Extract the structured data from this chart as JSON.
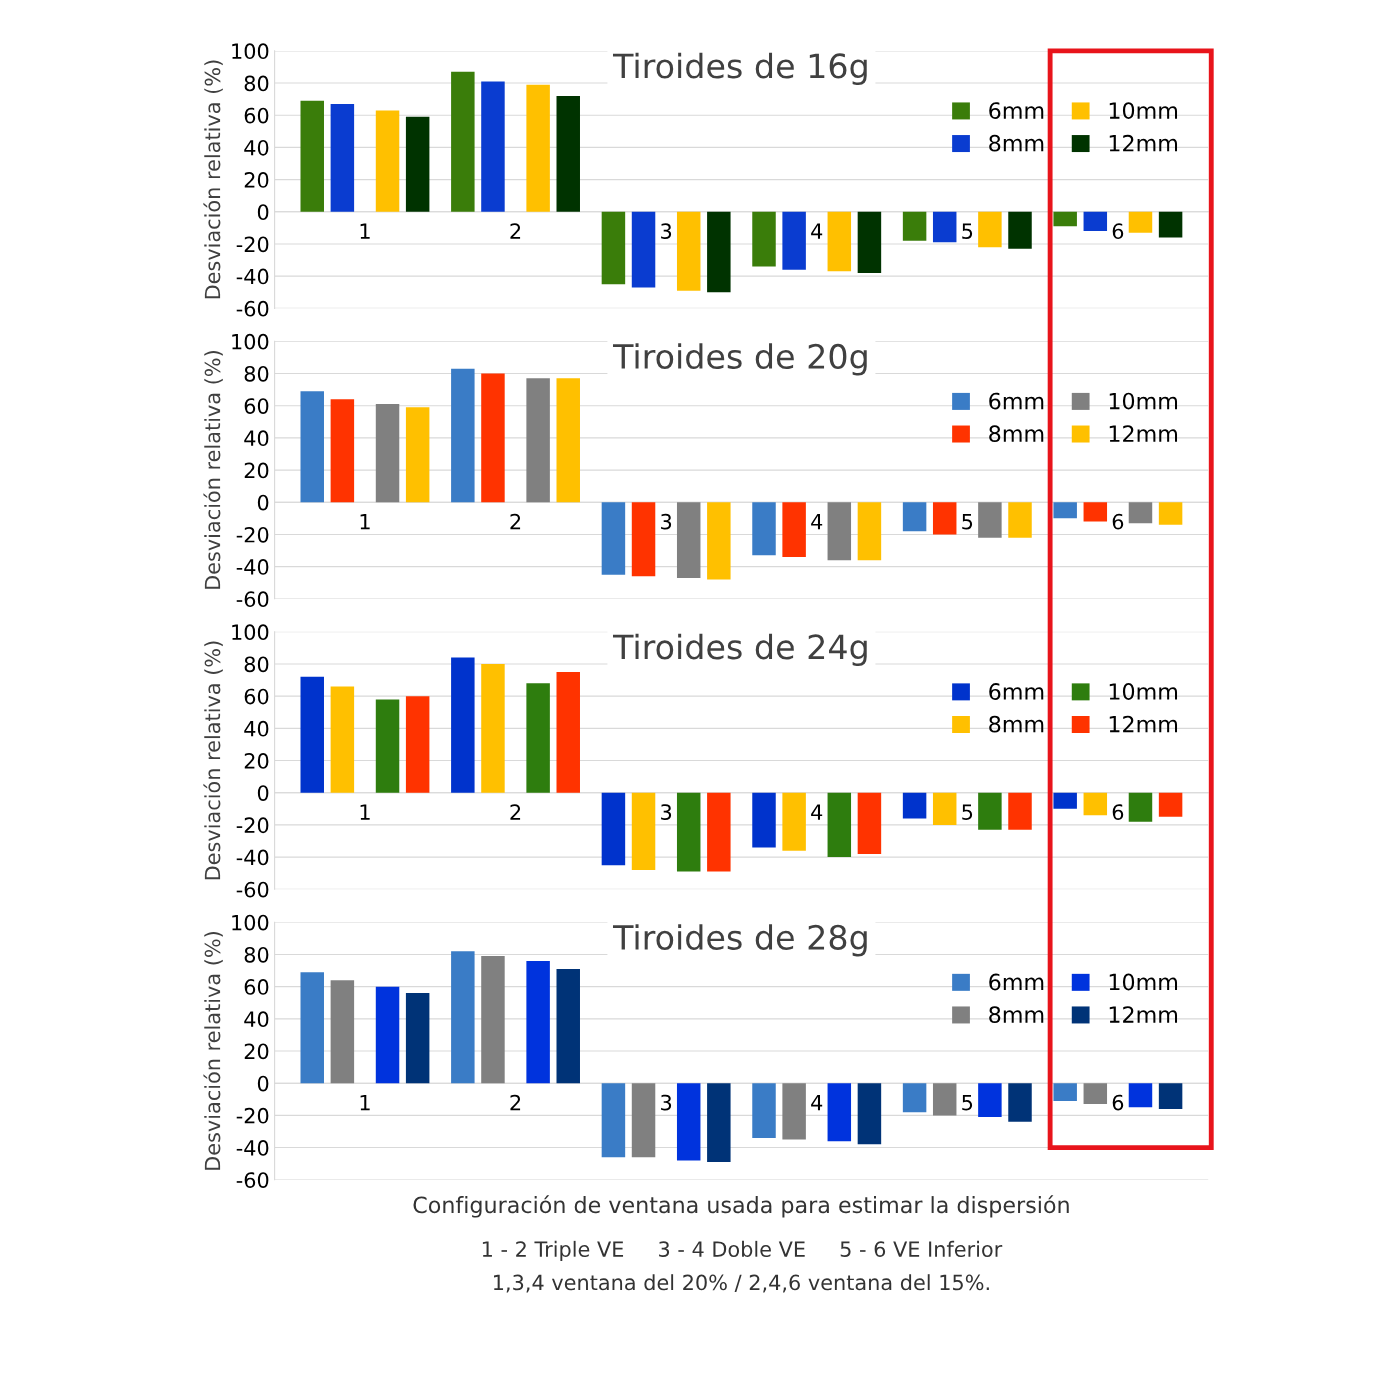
{
  "chart_data": [
    {
      "type": "bar",
      "title": "Tiroides de 16g",
      "ylabel": "Desviación relativa (%)",
      "categories": [
        "1",
        "2",
        "3",
        "4",
        "5",
        "6"
      ],
      "ylim": [
        -60,
        100
      ],
      "yticks": [
        -60,
        -40,
        -20,
        0,
        20,
        40,
        60,
        80,
        100
      ],
      "grid": "y",
      "legend": "top right",
      "series": [
        {
          "name": "6mm",
          "color": "#3a7d0a",
          "values": [
            69,
            87,
            -45,
            -34,
            -18,
            -9
          ]
        },
        {
          "name": "8mm",
          "color": "#0a3cd0",
          "values": [
            67,
            81,
            -47,
            -36,
            -19,
            -12
          ]
        },
        {
          "name": "10mm",
          "color": "#ffc000",
          "values": [
            63,
            79,
            -49,
            -37,
            -22,
            -13
          ]
        },
        {
          "name": "12mm",
          "color": "#003300",
          "values": [
            59,
            72,
            -50,
            -38,
            -23,
            -16
          ]
        }
      ]
    },
    {
      "type": "bar",
      "title": "Tiroides de 20g",
      "ylabel": "Desviación relativa (%)",
      "categories": [
        "1",
        "2",
        "3",
        "4",
        "5",
        "6"
      ],
      "ylim": [
        -60,
        100
      ],
      "yticks": [
        -60,
        -40,
        -20,
        0,
        20,
        40,
        60,
        80,
        100
      ],
      "grid": "y",
      "legend": "top right",
      "series": [
        {
          "name": "6mm",
          "color": "#3a7cc6",
          "values": [
            69,
            83,
            -45,
            -33,
            -18,
            -10
          ]
        },
        {
          "name": "8mm",
          "color": "#ff3300",
          "values": [
            64,
            80,
            -46,
            -34,
            -20,
            -12
          ]
        },
        {
          "name": "10mm",
          "color": "#808080",
          "values": [
            61,
            77,
            -47,
            -36,
            -22,
            -13
          ]
        },
        {
          "name": "12mm",
          "color": "#ffc000",
          "values": [
            59,
            77,
            -48,
            -36,
            -22,
            -14
          ]
        }
      ]
    },
    {
      "type": "bar",
      "title": "Tiroides de 24g",
      "ylabel": "Desviación relativa (%)",
      "categories": [
        "1",
        "2",
        "3",
        "4",
        "5",
        "6"
      ],
      "ylim": [
        -60,
        100
      ],
      "yticks": [
        -60,
        -40,
        -20,
        0,
        20,
        40,
        60,
        80,
        100
      ],
      "grid": "y",
      "legend": "top right",
      "series": [
        {
          "name": "6mm",
          "color": "#0033cc",
          "values": [
            72,
            84,
            -45,
            -34,
            -16,
            -10
          ]
        },
        {
          "name": "8mm",
          "color": "#ffc000",
          "values": [
            66,
            80,
            -48,
            -36,
            -20,
            -14
          ]
        },
        {
          "name": "10mm",
          "color": "#2e7d0e",
          "values": [
            58,
            68,
            -49,
            -40,
            -23,
            -18
          ]
        },
        {
          "name": "12mm",
          "color": "#ff3300",
          "values": [
            60,
            75,
            -49,
            -38,
            -23,
            -15
          ]
        }
      ]
    },
    {
      "type": "bar",
      "title": "Tiroides de 28g",
      "ylabel": "Desviación relativa (%)",
      "xlabel": "Configuración de ventana usada para estimar la dispersión",
      "categories": [
        "1",
        "2",
        "3",
        "4",
        "5",
        "6"
      ],
      "ylim": [
        -60,
        100
      ],
      "yticks": [
        -60,
        -40,
        -20,
        0,
        20,
        40,
        60,
        80,
        100
      ],
      "grid": "y",
      "legend": "top right",
      "annotations": [
        "1 - 2 Triple VE     3 - 4 Doble VE     5 - 6 VE Inferior",
        "1,3,4 ventana del 20% / 2,4,6 ventana del 15%."
      ],
      "series": [
        {
          "name": "6mm",
          "color": "#3a7cc6",
          "values": [
            69,
            82,
            -46,
            -34,
            -18,
            -11
          ]
        },
        {
          "name": "8mm",
          "color": "#808080",
          "values": [
            64,
            79,
            -46,
            -35,
            -20,
            -13
          ]
        },
        {
          "name": "10mm",
          "color": "#0033dd",
          "values": [
            60,
            76,
            -48,
            -36,
            -21,
            -15
          ]
        },
        {
          "name": "12mm",
          "color": "#003377",
          "values": [
            56,
            71,
            -49,
            -38,
            -24,
            -16
          ]
        }
      ]
    }
  ]
}
